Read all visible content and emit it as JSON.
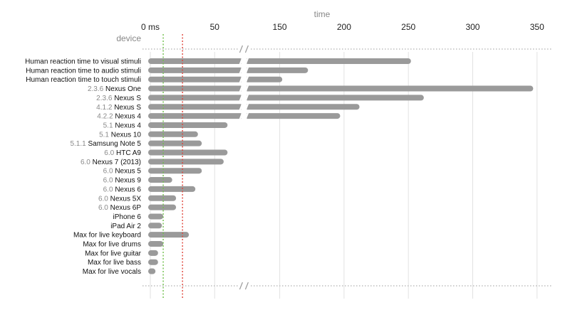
{
  "chart_data": {
    "type": "bar",
    "title": "",
    "xlabel": "time",
    "ylabel": "device",
    "first_tick_label": "0 ms",
    "x_ticks": [
      0,
      50,
      150,
      200,
      250,
      300,
      350
    ],
    "axis_break": "between 70 and 125 ms on the axis",
    "reference_lines": [
      {
        "value": 10,
        "color": "#6fbf4a",
        "style": "dotted"
      },
      {
        "value": 25,
        "color": "#e0453a",
        "style": "dotted"
      }
    ],
    "bar_color": "#9a9a9a",
    "categories": [
      {
        "prefix": "",
        "name": "Human reaction time to visual stimuli",
        "value": 252
      },
      {
        "prefix": "",
        "name": "Human reaction time to audio stimuli",
        "value": 172
      },
      {
        "prefix": "",
        "name": "Human reaction time to touch stimuli",
        "value": 152
      },
      {
        "prefix": "2.3.6",
        "name": "Nexus One",
        "value": 347
      },
      {
        "prefix": "2.3.6",
        "name": "Nexus S",
        "value": 262
      },
      {
        "prefix": "4.1.2",
        "name": "Nexus S",
        "value": 212
      },
      {
        "prefix": "4.2.2",
        "name": "Nexus 4",
        "value": 197
      },
      {
        "prefix": "5.1",
        "name": "Nexus 4",
        "value": 60
      },
      {
        "prefix": "5.1",
        "name": "Nexus 10",
        "value": 37
      },
      {
        "prefix": "5.1.1",
        "name": "Samsung Note 5",
        "value": 40
      },
      {
        "prefix": "6.0",
        "name": "HTC A9",
        "value": 60
      },
      {
        "prefix": "6.0",
        "name": "Nexus 7 (2013)",
        "value": 57
      },
      {
        "prefix": "6.0",
        "name": "Nexus 5",
        "value": 40
      },
      {
        "prefix": "6.0",
        "name": "Nexus 9",
        "value": 17
      },
      {
        "prefix": "6.0",
        "name": "Nexus 6",
        "value": 35
      },
      {
        "prefix": "6.0",
        "name": "Nexus 5X",
        "value": 20
      },
      {
        "prefix": "6.0",
        "name": "Nexus 6P",
        "value": 20
      },
      {
        "prefix": "",
        "name": "iPhone 6",
        "value": 10
      },
      {
        "prefix": "",
        "name": "iPad Air 2",
        "value": 9
      },
      {
        "prefix": "",
        "name": "Max for live keyboard",
        "value": 30
      },
      {
        "prefix": "",
        "name": "Max for live drums",
        "value": 10
      },
      {
        "prefix": "",
        "name": "Max for live guitar",
        "value": 6
      },
      {
        "prefix": "",
        "name": "Max for live bass",
        "value": 6
      },
      {
        "prefix": "",
        "name": "Max for live vocals",
        "value": 4
      }
    ]
  }
}
